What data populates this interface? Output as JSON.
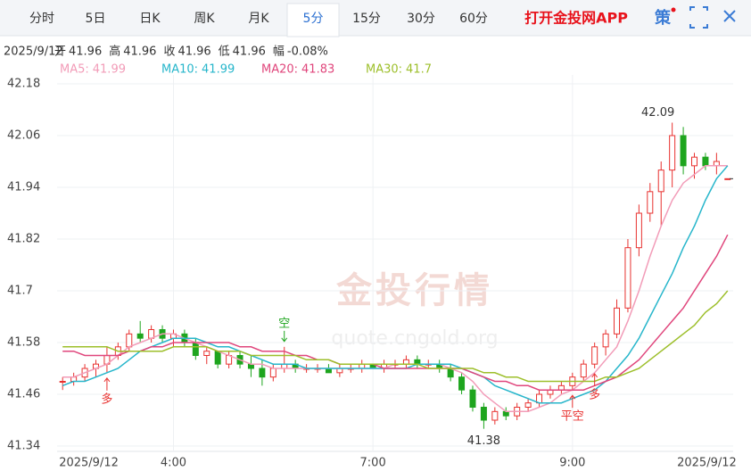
{
  "header": {
    "tabs": [
      "分时",
      "5日",
      "日K",
      "周K",
      "月K",
      "5分",
      "15分",
      "30分",
      "60分"
    ],
    "active_tab": 5,
    "promo": "打开金投网APP",
    "strategy": "策"
  },
  "info": {
    "date": "2025/9/12",
    "fields": [
      {
        "label": "开",
        "value": 41.96
      },
      {
        "label": "高",
        "value": 41.96
      },
      {
        "label": "收",
        "value": 41.96
      },
      {
        "label": "低",
        "value": 41.96
      },
      {
        "label": "幅",
        "value": "-0.08%"
      }
    ]
  },
  "chart_data": {
    "type": "candlestick",
    "watermark": [
      "金投行情",
      "quote.cngold.org"
    ],
    "ylim": [
      41.34,
      42.18
    ],
    "yticks": [
      42.18,
      42.06,
      41.94,
      41.82,
      41.7,
      41.58,
      41.46,
      41.34
    ],
    "xlim": [
      -0.5,
      60.5
    ],
    "xticks": [
      {
        "value": 0,
        "label": "2025/9/12"
      },
      {
        "value": 10,
        "label": "4:00"
      },
      {
        "value": 28,
        "label": "7:00"
      },
      {
        "value": 46,
        "label": "9:00"
      },
      {
        "value": 60,
        "label": "2025/9/12"
      }
    ],
    "grid": true,
    "up_color": "#e8312f",
    "down_color": "#1ea51e",
    "open": [
      41.49,
      41.49,
      41.5,
      41.52,
      41.53,
      41.55,
      41.57,
      41.6,
      41.59,
      41.61,
      41.59,
      41.6,
      41.58,
      41.55,
      41.56,
      41.53,
      41.55,
      41.53,
      41.52,
      41.5,
      41.52,
      41.53,
      41.52,
      41.52,
      41.52,
      41.51,
      41.52,
      41.52,
      41.53,
      41.52,
      41.53,
      41.53,
      41.54,
      41.53,
      41.53,
      41.52,
      41.5,
      41.47,
      41.43,
      41.4,
      41.42,
      41.41,
      41.43,
      41.44,
      41.46,
      41.47,
      41.48,
      41.5,
      41.53,
      41.57,
      41.6,
      41.66,
      41.8,
      41.88,
      41.93,
      41.98,
      42.06,
      41.99,
      42.01,
      41.99,
      41.96
    ],
    "high": [
      41.5,
      41.51,
      41.53,
      41.54,
      41.57,
      41.58,
      41.61,
      41.63,
      41.62,
      41.62,
      41.61,
      41.61,
      41.59,
      41.57,
      41.56,
      41.56,
      41.56,
      41.55,
      41.54,
      41.53,
      41.57,
      41.54,
      41.53,
      41.53,
      41.53,
      41.53,
      41.53,
      41.54,
      41.53,
      41.54,
      41.54,
      41.55,
      41.55,
      41.54,
      41.54,
      41.53,
      41.51,
      41.48,
      41.44,
      41.43,
      41.43,
      41.44,
      41.45,
      41.47,
      41.48,
      41.49,
      41.51,
      41.54,
      41.58,
      41.61,
      41.68,
      41.82,
      41.9,
      41.95,
      42.0,
      42.09,
      42.08,
      42.02,
      42.02,
      42.02,
      41.96
    ],
    "low": [
      41.47,
      41.48,
      41.49,
      41.5,
      41.51,
      41.54,
      41.56,
      41.58,
      41.58,
      41.58,
      41.57,
      41.57,
      41.54,
      41.53,
      41.52,
      41.52,
      41.52,
      41.5,
      41.48,
      41.49,
      41.51,
      41.51,
      41.51,
      41.51,
      41.51,
      41.5,
      41.51,
      41.51,
      41.52,
      41.51,
      41.52,
      41.52,
      41.52,
      41.52,
      41.51,
      41.49,
      41.46,
      41.42,
      41.38,
      41.39,
      41.4,
      41.4,
      41.42,
      41.43,
      41.45,
      41.46,
      41.47,
      41.49,
      41.52,
      41.55,
      41.59,
      41.65,
      41.78,
      41.86,
      41.85,
      41.94,
      41.97,
      41.96,
      41.98,
      41.97,
      41.96
    ],
    "close": [
      41.49,
      41.5,
      41.52,
      41.53,
      41.55,
      41.57,
      41.6,
      41.59,
      41.61,
      41.59,
      41.6,
      41.58,
      41.55,
      41.56,
      41.53,
      41.55,
      41.53,
      41.52,
      41.5,
      41.52,
      41.53,
      41.52,
      41.52,
      41.52,
      41.51,
      41.52,
      41.52,
      41.53,
      41.52,
      41.53,
      41.53,
      41.54,
      41.53,
      41.53,
      41.52,
      41.5,
      41.47,
      41.43,
      41.4,
      41.42,
      41.41,
      41.43,
      41.44,
      41.46,
      41.47,
      41.48,
      41.5,
      41.53,
      41.57,
      41.6,
      41.66,
      41.8,
      41.88,
      41.93,
      41.98,
      42.06,
      41.99,
      42.01,
      41.99,
      42.0,
      41.96
    ],
    "series": [
      {
        "name": "MA5:",
        "last": 41.99,
        "color": "#f29cb8",
        "values": [
          41.5,
          41.5,
          41.51,
          41.52,
          41.53,
          41.55,
          41.57,
          41.58,
          41.59,
          41.6,
          41.6,
          41.59,
          41.58,
          41.57,
          41.56,
          41.55,
          41.54,
          41.53,
          41.53,
          41.52,
          41.52,
          41.52,
          41.52,
          41.52,
          41.52,
          41.52,
          41.52,
          41.52,
          41.52,
          41.52,
          41.53,
          41.53,
          41.53,
          41.53,
          41.53,
          41.52,
          41.51,
          41.49,
          41.46,
          41.44,
          41.42,
          41.42,
          41.42,
          41.43,
          41.44,
          41.46,
          41.47,
          41.49,
          41.51,
          41.54,
          41.57,
          41.63,
          41.7,
          41.78,
          41.85,
          41.91,
          41.95,
          41.97,
          41.99,
          41.99,
          41.99
        ]
      },
      {
        "name": "MA10:",
        "last": 41.99,
        "color": "#27b6cb",
        "values": [
          41.48,
          41.49,
          41.49,
          41.5,
          41.51,
          41.52,
          41.54,
          41.56,
          41.57,
          41.58,
          41.59,
          41.59,
          41.59,
          41.58,
          41.57,
          41.57,
          41.56,
          41.55,
          41.54,
          41.53,
          41.53,
          41.53,
          41.52,
          41.52,
          41.52,
          41.52,
          41.52,
          41.52,
          41.52,
          41.52,
          41.52,
          41.52,
          41.53,
          41.53,
          41.53,
          41.53,
          41.52,
          41.51,
          41.5,
          41.48,
          41.47,
          41.46,
          41.45,
          41.44,
          41.44,
          41.44,
          41.45,
          41.46,
          41.47,
          41.49,
          41.52,
          41.55,
          41.59,
          41.64,
          41.69,
          41.74,
          41.8,
          41.85,
          41.91,
          41.96,
          41.99
        ]
      },
      {
        "name": "MA20:",
        "last": 41.83,
        "color": "#e0467c",
        "values": [
          41.56,
          41.56,
          41.55,
          41.55,
          41.55,
          41.55,
          41.56,
          41.56,
          41.57,
          41.57,
          41.58,
          41.58,
          41.58,
          41.58,
          41.58,
          41.58,
          41.57,
          41.57,
          41.56,
          41.56,
          41.56,
          41.55,
          41.55,
          41.54,
          41.54,
          41.53,
          41.53,
          41.53,
          41.53,
          41.52,
          41.52,
          41.52,
          41.52,
          41.52,
          41.52,
          41.52,
          41.52,
          41.51,
          41.5,
          41.49,
          41.49,
          41.48,
          41.48,
          41.47,
          41.47,
          41.47,
          41.47,
          41.47,
          41.48,
          41.49,
          41.5,
          41.52,
          41.54,
          41.57,
          41.6,
          41.63,
          41.66,
          41.7,
          41.74,
          41.78,
          41.83
        ]
      },
      {
        "name": "MA30:",
        "last": 41.7,
        "color": "#9dbf2b",
        "values": [
          41.57,
          41.57,
          41.57,
          41.57,
          41.57,
          41.56,
          41.56,
          41.56,
          41.56,
          41.56,
          41.57,
          41.57,
          41.57,
          41.57,
          41.56,
          41.56,
          41.56,
          41.55,
          41.55,
          41.55,
          41.55,
          41.55,
          41.54,
          41.54,
          41.54,
          41.53,
          41.53,
          41.53,
          41.53,
          41.53,
          41.53,
          41.53,
          41.53,
          41.52,
          41.52,
          41.52,
          41.52,
          41.52,
          41.51,
          41.51,
          41.5,
          41.5,
          41.49,
          41.49,
          41.49,
          41.49,
          41.49,
          41.49,
          41.49,
          41.5,
          41.5,
          41.51,
          41.52,
          41.54,
          41.56,
          41.58,
          41.6,
          41.62,
          41.65,
          41.67,
          41.7
        ]
      }
    ],
    "max_label": {
      "x": 55,
      "value": 42.09
    },
    "min_label": {
      "x": 38,
      "value": 41.38
    },
    "signals": [
      {
        "x": 4,
        "label": "多",
        "color": "#e8312f"
      },
      {
        "x": 20,
        "label": "空",
        "color": "#1ea51e"
      },
      {
        "x": 46,
        "label": "平空",
        "color": "#e8312f"
      },
      {
        "x": 48,
        "label": "多",
        "color": "#e8312f"
      }
    ]
  }
}
